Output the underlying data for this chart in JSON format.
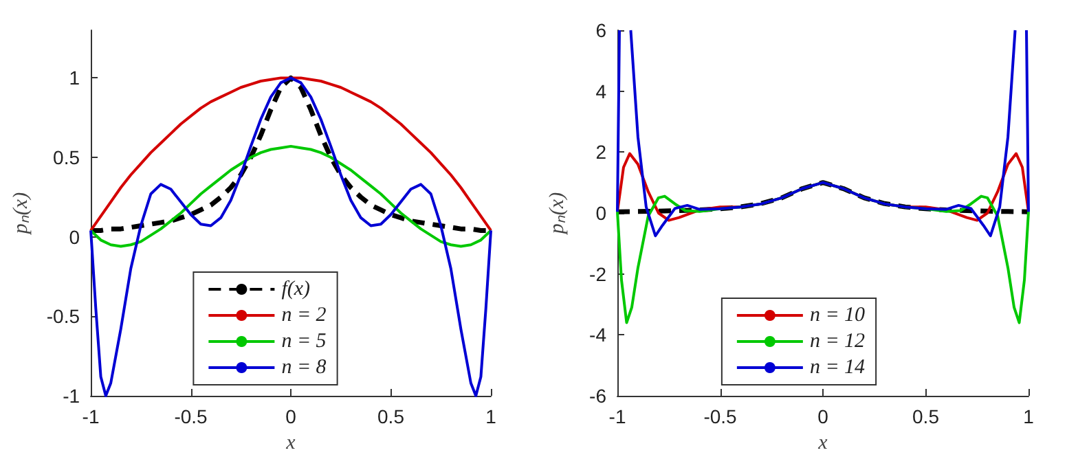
{
  "chart_data": [
    {
      "type": "line",
      "xlabel": "x",
      "ylabel": "pₙ(x)",
      "xlim": [
        -1,
        1
      ],
      "xticks": [
        -1,
        -0.5,
        0,
        0.5,
        1
      ],
      "ylim": [
        -1,
        1.3
      ],
      "yticks": [
        -1,
        -0.5,
        0,
        0.5,
        1
      ],
      "legend": "bottom",
      "marker": "none",
      "x": [
        -1,
        -0.95,
        -0.9,
        -0.85,
        -0.8,
        -0.75,
        -0.7,
        -0.65,
        -0.6,
        -0.55,
        -0.5,
        -0.45,
        -0.4,
        -0.35,
        -0.3,
        -0.25,
        -0.2,
        -0.15,
        -0.1,
        -0.05,
        0,
        0.05,
        0.1,
        0.15,
        0.2,
        0.25,
        0.3,
        0.35,
        0.4,
        0.45,
        0.5,
        0.55,
        0.6,
        0.65,
        0.7,
        0.75,
        0.8,
        0.85,
        0.9,
        0.95,
        1
      ],
      "series": [
        {
          "name": "f(x)",
          "color": "#000000",
          "line_style": "dashed",
          "values": [
            0.04,
            0.04,
            0.05,
            0.05,
            0.06,
            0.07,
            0.08,
            0.09,
            0.1,
            0.12,
            0.14,
            0.17,
            0.2,
            0.25,
            0.31,
            0.39,
            0.5,
            0.64,
            0.8,
            0.94,
            1,
            0.94,
            0.8,
            0.64,
            0.5,
            0.39,
            0.31,
            0.25,
            0.2,
            0.17,
            0.14,
            0.12,
            0.1,
            0.09,
            0.08,
            0.07,
            0.06,
            0.05,
            0.05,
            0.04,
            0.04
          ]
        },
        {
          "name": "n = 2",
          "color": "#d40000",
          "line_style": "solid",
          "values": [
            0.04,
            0.13,
            0.22,
            0.31,
            0.39,
            0.46,
            0.53,
            0.59,
            0.65,
            0.71,
            0.76,
            0.81,
            0.85,
            0.88,
            0.91,
            0.94,
            0.96,
            0.98,
            0.99,
            1,
            1,
            1,
            0.99,
            0.98,
            0.96,
            0.94,
            0.91,
            0.88,
            0.85,
            0.81,
            0.76,
            0.71,
            0.65,
            0.59,
            0.53,
            0.46,
            0.39,
            0.31,
            0.22,
            0.13,
            0.04
          ]
        },
        {
          "name": "n = 5",
          "color": "#00c800",
          "line_style": "solid",
          "values": [
            0.04,
            -0.02,
            -0.05,
            -0.06,
            -0.05,
            -0.03,
            0.01,
            0.05,
            0.1,
            0.15,
            0.21,
            0.27,
            0.32,
            0.37,
            0.42,
            0.46,
            0.5,
            0.53,
            0.55,
            0.56,
            0.57,
            0.56,
            0.55,
            0.53,
            0.5,
            0.46,
            0.42,
            0.37,
            0.32,
            0.27,
            0.21,
            0.15,
            0.1,
            0.05,
            0.01,
            -0.03,
            -0.05,
            -0.06,
            -0.05,
            -0.02,
            0.04
          ]
        },
        {
          "name": "n = 8",
          "color": "#0000d4",
          "line_style": "solid",
          "x": [
            -1,
            -0.975,
            -0.95,
            -0.925,
            -0.9,
            -0.85,
            -0.8,
            -0.75,
            -0.7,
            -0.65,
            -0.6,
            -0.55,
            -0.5,
            -0.45,
            -0.4,
            -0.35,
            -0.3,
            -0.25,
            -0.2,
            -0.15,
            -0.1,
            -0.05,
            0,
            0.05,
            0.1,
            0.15,
            0.2,
            0.25,
            0.3,
            0.35,
            0.4,
            0.45,
            0.5,
            0.55,
            0.6,
            0.65,
            0.7,
            0.75,
            0.8,
            0.85,
            0.9,
            0.925,
            0.95,
            0.975,
            1
          ],
          "values": [
            0.04,
            -0.45,
            -0.88,
            -1,
            -0.92,
            -0.58,
            -0.2,
            0.07,
            0.27,
            0.33,
            0.3,
            0.22,
            0.14,
            0.08,
            0.07,
            0.12,
            0.23,
            0.39,
            0.57,
            0.74,
            0.88,
            0.97,
            1,
            0.97,
            0.88,
            0.74,
            0.57,
            0.39,
            0.23,
            0.12,
            0.07,
            0.08,
            0.14,
            0.22,
            0.3,
            0.33,
            0.27,
            0.07,
            -0.2,
            -0.58,
            -0.92,
            -1,
            -0.88,
            -0.45,
            0.04
          ]
        }
      ]
    },
    {
      "type": "line",
      "xlabel": "x",
      "ylabel": "pₙ(x)",
      "xlim": [
        -1,
        1
      ],
      "xticks": [
        -1,
        -0.5,
        0,
        0.5,
        1
      ],
      "ylim": [
        -6,
        6
      ],
      "yticks": [
        -6,
        -4,
        -2,
        0,
        2,
        4,
        6
      ],
      "legend": "bottom",
      "marker": "none",
      "x": [
        -1,
        -0.9,
        -0.8,
        -0.7,
        -0.6,
        -0.5,
        -0.4,
        -0.3,
        -0.2,
        -0.1,
        0,
        0.1,
        0.2,
        0.3,
        0.4,
        0.5,
        0.6,
        0.7,
        0.8,
        0.9,
        1
      ],
      "series": [
        {
          "color": "#000000",
          "line_style": "dashed",
          "values": [
            0.04,
            0.05,
            0.06,
            0.08,
            0.1,
            0.14,
            0.2,
            0.31,
            0.5,
            0.8,
            1,
            0.8,
            0.5,
            0.31,
            0.2,
            0.14,
            0.1,
            0.08,
            0.06,
            0.05,
            0.04
          ]
        },
        {
          "name": "n = 10",
          "color": "#d40000",
          "line_style": "solid",
          "x": [
            -1,
            -0.97,
            -0.94,
            -0.9,
            -0.85,
            -0.8,
            -0.75,
            -0.7,
            -0.6,
            -0.5,
            -0.4,
            -0.3,
            -0.2,
            -0.1,
            0,
            0.1,
            0.2,
            0.3,
            0.4,
            0.5,
            0.6,
            0.7,
            0.75,
            0.8,
            0.85,
            0.9,
            0.94,
            0.97,
            1
          ],
          "values": [
            0.04,
            1.5,
            1.95,
            1.6,
            0.7,
            0,
            -0.24,
            -0.15,
            0.1,
            0.2,
            0.2,
            0.3,
            0.5,
            0.8,
            1,
            0.8,
            0.5,
            0.3,
            0.2,
            0.2,
            0.1,
            -0.15,
            -0.24,
            0,
            0.7,
            1.6,
            1.95,
            1.5,
            0.04
          ]
        },
        {
          "name": "n = 12",
          "color": "#00c800",
          "line_style": "solid",
          "x": [
            -1,
            -0.98,
            -0.955,
            -0.93,
            -0.9,
            -0.85,
            -0.8,
            -0.77,
            -0.72,
            -0.67,
            -0.6,
            -0.5,
            -0.4,
            -0.3,
            -0.2,
            -0.1,
            0,
            0.1,
            0.2,
            0.3,
            0.4,
            0.5,
            0.6,
            0.67,
            0.72,
            0.77,
            0.8,
            0.85,
            0.9,
            0.93,
            0.955,
            0.98,
            1
          ],
          "values": [
            0.04,
            -2.2,
            -3.6,
            -3.1,
            -1.8,
            -0.1,
            0.5,
            0.55,
            0.3,
            0.08,
            0.05,
            0.14,
            0.2,
            0.3,
            0.5,
            0.8,
            1,
            0.8,
            0.5,
            0.3,
            0.2,
            0.14,
            0.05,
            0.08,
            0.3,
            0.55,
            0.5,
            -0.1,
            -1.8,
            -3.1,
            -3.6,
            -2.2,
            0.04
          ]
        },
        {
          "name": "n = 14",
          "color": "#0000d4",
          "line_style": "solid",
          "x": [
            -1,
            -0.99,
            -0.965,
            -0.935,
            -0.9,
            -0.86,
            -0.815,
            -0.78,
            -0.72,
            -0.66,
            -0.6,
            -0.5,
            -0.4,
            -0.3,
            -0.2,
            -0.1,
            0,
            0.1,
            0.2,
            0.3,
            0.4,
            0.5,
            0.6,
            0.66,
            0.72,
            0.78,
            0.815,
            0.86,
            0.9,
            0.935,
            0.965,
            0.99,
            1
          ],
          "values": [
            0.04,
            6,
            null,
            6,
            2.5,
            0.2,
            -0.75,
            -0.4,
            0.15,
            0.25,
            0.12,
            0.14,
            0.2,
            0.3,
            0.5,
            0.8,
            1,
            0.8,
            0.5,
            0.3,
            0.2,
            0.14,
            0.12,
            0.25,
            0.15,
            -0.4,
            -0.75,
            0.2,
            2.5,
            6,
            null,
            6,
            0.04
          ]
        }
      ]
    }
  ]
}
